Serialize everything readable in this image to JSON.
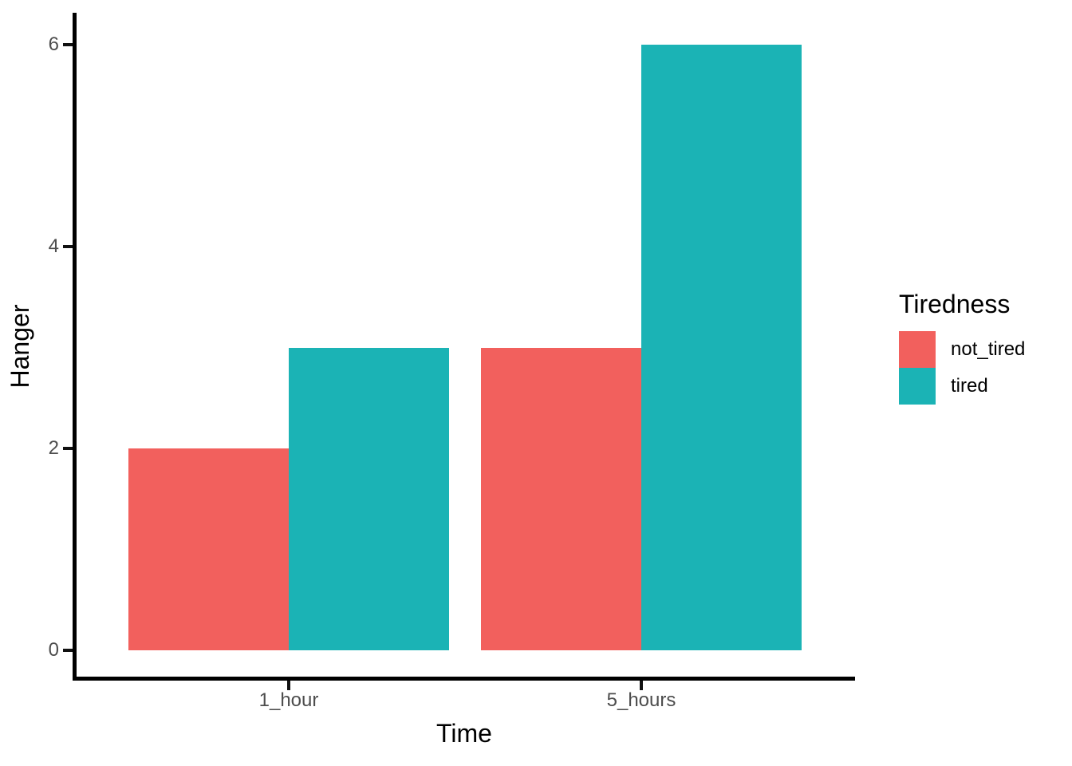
{
  "chart_data": {
    "type": "bar",
    "title": "",
    "xlabel": "Time",
    "ylabel": "Hanger",
    "legend_title": "Tiredness",
    "legend_position": "right",
    "grid": false,
    "categories": [
      "1_hour",
      "5_hours"
    ],
    "series": [
      {
        "name": "not_tired",
        "color": "#F2605D",
        "values": [
          2,
          3
        ]
      },
      {
        "name": "tired",
        "color": "#1BB3B5",
        "values": [
          3,
          6
        ]
      }
    ],
    "y_ticks": [
      0,
      2,
      4,
      6
    ],
    "ylim": [
      0,
      6.3
    ],
    "bar_layout": "dodged"
  },
  "colors": {
    "background": "#FFFFFF",
    "axis_line": "#000000",
    "tick_mark": "#111111",
    "tick_label": "#4D4D4D",
    "title_text": "#000000"
  }
}
